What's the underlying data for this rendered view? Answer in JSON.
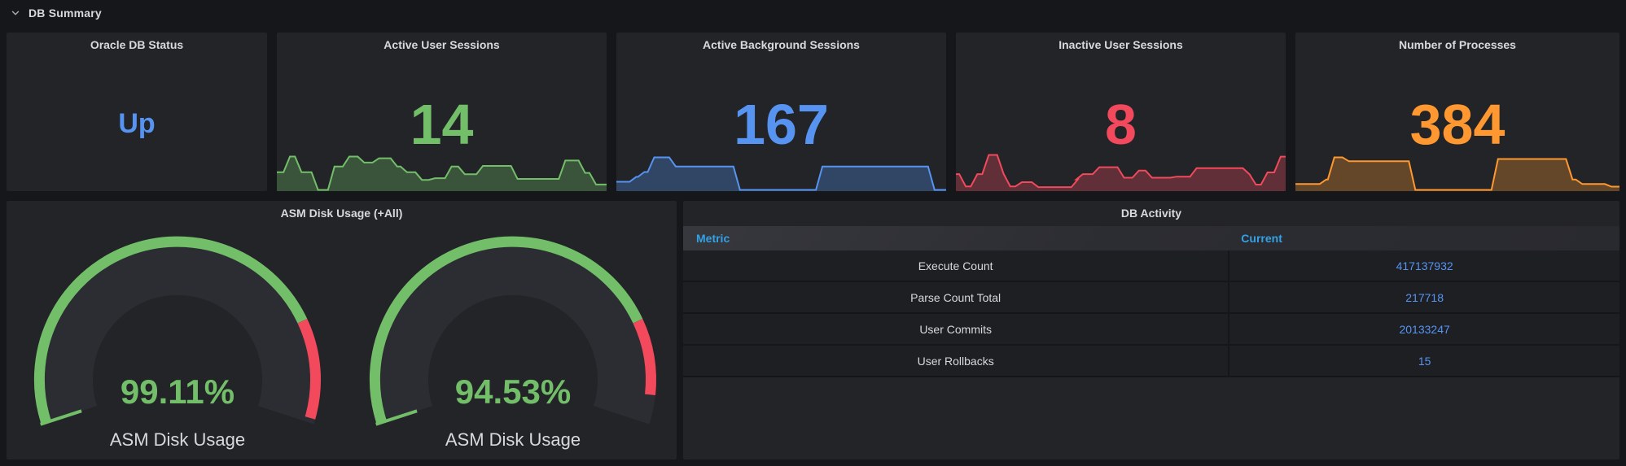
{
  "header": {
    "title": "DB Summary",
    "collapse_icon": "chevron-down-icon"
  },
  "colors": {
    "page_bg": "#15171b",
    "panel_bg": "#222428",
    "text": "#d8d9da",
    "green": "#73bf69",
    "blue": "#5794f2",
    "red": "#f2495c",
    "orange": "#ff9830",
    "table_header_blue": "#33a2e5",
    "gauge_track": "#2b2d32"
  },
  "chart_data": [
    {
      "type": "stat",
      "title": "Oracle DB Status",
      "value": "Up",
      "color": "#5794f2"
    },
    {
      "type": "stat-with-sparkline",
      "title": "Active User Sessions",
      "value": "14",
      "color": "#73bf69",
      "sparkline": {
        "type": "area-steps",
        "values_normalized": true,
        "points": [
          [
            0,
            0.53
          ],
          [
            0.03,
            1
          ],
          [
            0.065,
            0.53
          ],
          [
            0.115,
            0
          ],
          [
            0.165,
            0.7
          ],
          [
            0.21,
            1
          ],
          [
            0.255,
            0.82
          ],
          [
            0.3,
            0.95
          ],
          [
            0.355,
            0.7
          ],
          [
            0.385,
            0.53
          ],
          [
            0.43,
            0.3
          ],
          [
            0.47,
            0.35
          ],
          [
            0.52,
            0.7
          ],
          [
            0.56,
            0.47
          ],
          [
            0.615,
            0.72
          ],
          [
            0.72,
            0.33
          ],
          [
            0.865,
            0.88
          ],
          [
            0.925,
            0.51
          ],
          [
            0.958,
            0.16
          ],
          [
            1,
            0.16
          ]
        ]
      }
    },
    {
      "type": "stat-with-sparkline",
      "title": "Active Background Sessions",
      "value": "167",
      "color": "#5794f2",
      "sparkline": {
        "type": "area-steps",
        "values_normalized": true,
        "points": [
          [
            0,
            0.25
          ],
          [
            0.05,
            0.4
          ],
          [
            0.075,
            0.55
          ],
          [
            0.105,
            1
          ],
          [
            0.17,
            0.72
          ],
          [
            0.365,
            0
          ],
          [
            0.615,
            0.72
          ],
          [
            0.955,
            0
          ],
          [
            1,
            0
          ]
        ]
      }
    },
    {
      "type": "stat-with-sparkline",
      "title": "Inactive User Sessions",
      "value": "8",
      "color": "#f2495c",
      "sparkline": {
        "type": "area-steps",
        "values_normalized": true,
        "points": [
          [
            0,
            0.45
          ],
          [
            0.02,
            0.1
          ],
          [
            0.055,
            0.45
          ],
          [
            0.09,
            1
          ],
          [
            0.135,
            0.45
          ],
          [
            0.155,
            0.1
          ],
          [
            0.19,
            0.22
          ],
          [
            0.24,
            0.08
          ],
          [
            0.36,
            0.3
          ],
          [
            0.375,
            0.45
          ],
          [
            0.425,
            0.65
          ],
          [
            0.5,
            0.35
          ],
          [
            0.545,
            0.55
          ],
          [
            0.585,
            0.35
          ],
          [
            0.66,
            0.38
          ],
          [
            0.72,
            0.62
          ],
          [
            0.88,
            0.45
          ],
          [
            0.9,
            0.15
          ],
          [
            0.935,
            0.5
          ],
          [
            0.975,
            0.95
          ],
          [
            1,
            0.95
          ]
        ]
      }
    },
    {
      "type": "stat-with-sparkline",
      "title": "Number of Processes",
      "value": "384",
      "color": "#ff9830",
      "sparkline": {
        "type": "area-steps",
        "values_normalized": true,
        "points": [
          [
            0,
            0.18
          ],
          [
            0.085,
            0.32
          ],
          [
            0.11,
            1
          ],
          [
            0.155,
            0.88
          ],
          [
            0.36,
            0
          ],
          [
            0.615,
            0.95
          ],
          [
            0.845,
            0.32
          ],
          [
            0.875,
            0.18
          ],
          [
            0.965,
            0.1
          ],
          [
            1,
            0.1
          ]
        ]
      }
    },
    {
      "type": "gauge",
      "title": "ASM Disk Usage (+All)",
      "min": 0,
      "max": 100,
      "unit": "%",
      "thresholds": [
        {
          "color": "#73bf69",
          "from": 0
        },
        {
          "color": "#f2495c",
          "from": 80
        }
      ],
      "gauges": [
        {
          "label": "ASM Disk Usage",
          "value": 99.11,
          "value_text": "99.11%"
        },
        {
          "label": "ASM Disk Usage",
          "value": 94.53,
          "value_text": "94.53%"
        }
      ]
    },
    {
      "type": "table",
      "title": "DB Activity",
      "columns": [
        "Metric",
        "Current"
      ],
      "rows": [
        [
          "Execute Count",
          "417137932"
        ],
        [
          "Parse Count Total",
          "217718"
        ],
        [
          "User Commits",
          "20133247"
        ],
        [
          "User Rollbacks",
          "15"
        ]
      ]
    }
  ]
}
